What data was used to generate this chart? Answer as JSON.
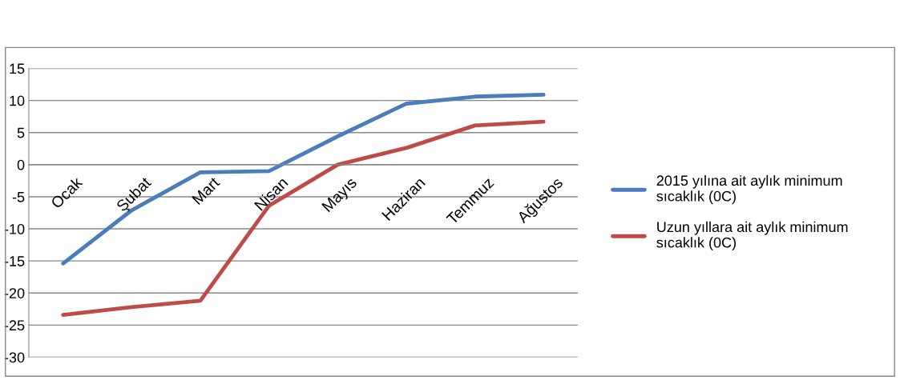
{
  "chart_data": {
    "type": "line",
    "categories": [
      "Ocak",
      "Şubat",
      "Mart",
      "Nisan",
      "Mayıs",
      "Haziran",
      "Temmuz",
      "Ağustos"
    ],
    "series": [
      {
        "name": "2015 yılına ait aylık minimum sıcaklık (0C)",
        "color": "#4a7ebb",
        "values": [
          -15.4,
          -7.1,
          -1.2,
          -1.0,
          4.4,
          9.5,
          10.6,
          10.9
        ]
      },
      {
        "name": "Uzun yıllara ait aylık minimum sıcaklık (0C)",
        "color": "#be4b48",
        "values": [
          -23.4,
          -22.2,
          -21.2,
          -6.4,
          0.0,
          2.6,
          6.1,
          6.7
        ]
      }
    ],
    "ylim": [
      -30,
      15
    ],
    "yticks": [
      -30,
      -25,
      -20,
      -15,
      -10,
      -5,
      0,
      5,
      10,
      15
    ],
    "grid": "y",
    "legend": "right",
    "marker": "none",
    "line_style": "solid"
  }
}
